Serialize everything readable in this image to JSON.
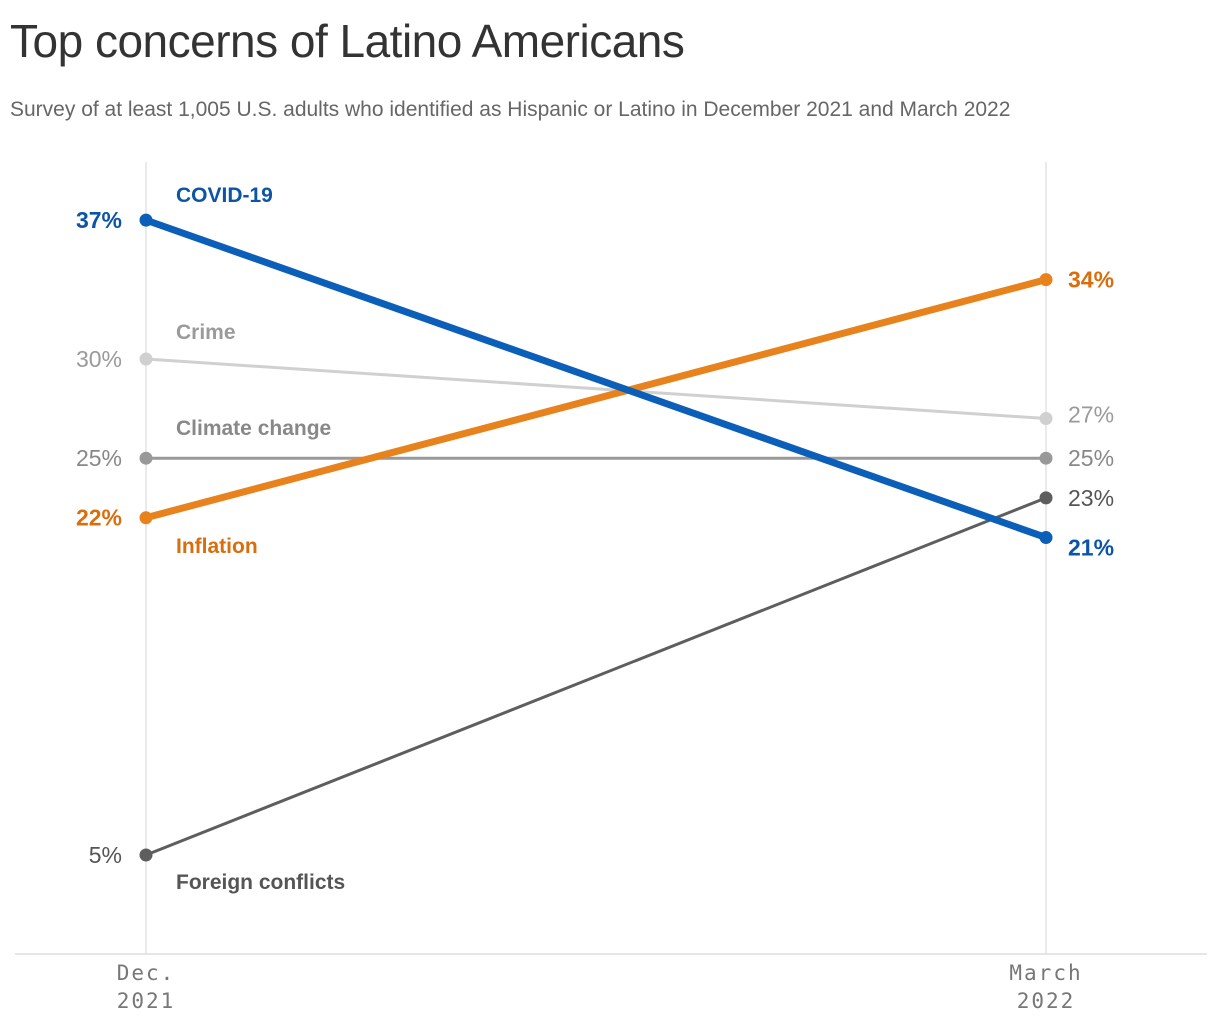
{
  "title": "Top concerns of Latino Americans",
  "subtitle": "Survey of at least 1,005 U.S. adults who identified as Hispanic or Latino in December 2021 and March 2022",
  "chart_data": {
    "type": "line",
    "x": [
      "Dec. 2021",
      "March 2022"
    ],
    "x_tick_labels": [
      [
        "Dec.",
        "2021"
      ],
      [
        "March",
        "2022"
      ]
    ],
    "ylim": [
      0,
      40
    ],
    "grid": false,
    "series": [
      {
        "name": "COVID-19",
        "values": [
          37,
          21
        ],
        "labels": [
          "37%",
          "21%"
        ],
        "color": "#0b5fb8",
        "label_color": "#0b54a6",
        "weight": "bold"
      },
      {
        "name": "Crime",
        "values": [
          30,
          27
        ],
        "labels": [
          "30%",
          "27%"
        ],
        "color": "#d0d0d0",
        "label_color": "#9a9a9a",
        "weight": "normal"
      },
      {
        "name": "Climate change",
        "values": [
          25,
          25
        ],
        "labels": [
          "25%",
          "25%"
        ],
        "color": "#999999",
        "label_color": "#888888",
        "weight": "normal"
      },
      {
        "name": "Inflation",
        "values": [
          22,
          34
        ],
        "labels": [
          "22%",
          "34%"
        ],
        "color": "#e8821c",
        "label_color": "#d86e0c",
        "weight": "bold"
      },
      {
        "name": "Foreign conflicts",
        "values": [
          5,
          23
        ],
        "labels": [
          "5%",
          "23%"
        ],
        "color": "#5e5e5e",
        "label_color": "#555555",
        "weight": "normal"
      }
    ]
  }
}
